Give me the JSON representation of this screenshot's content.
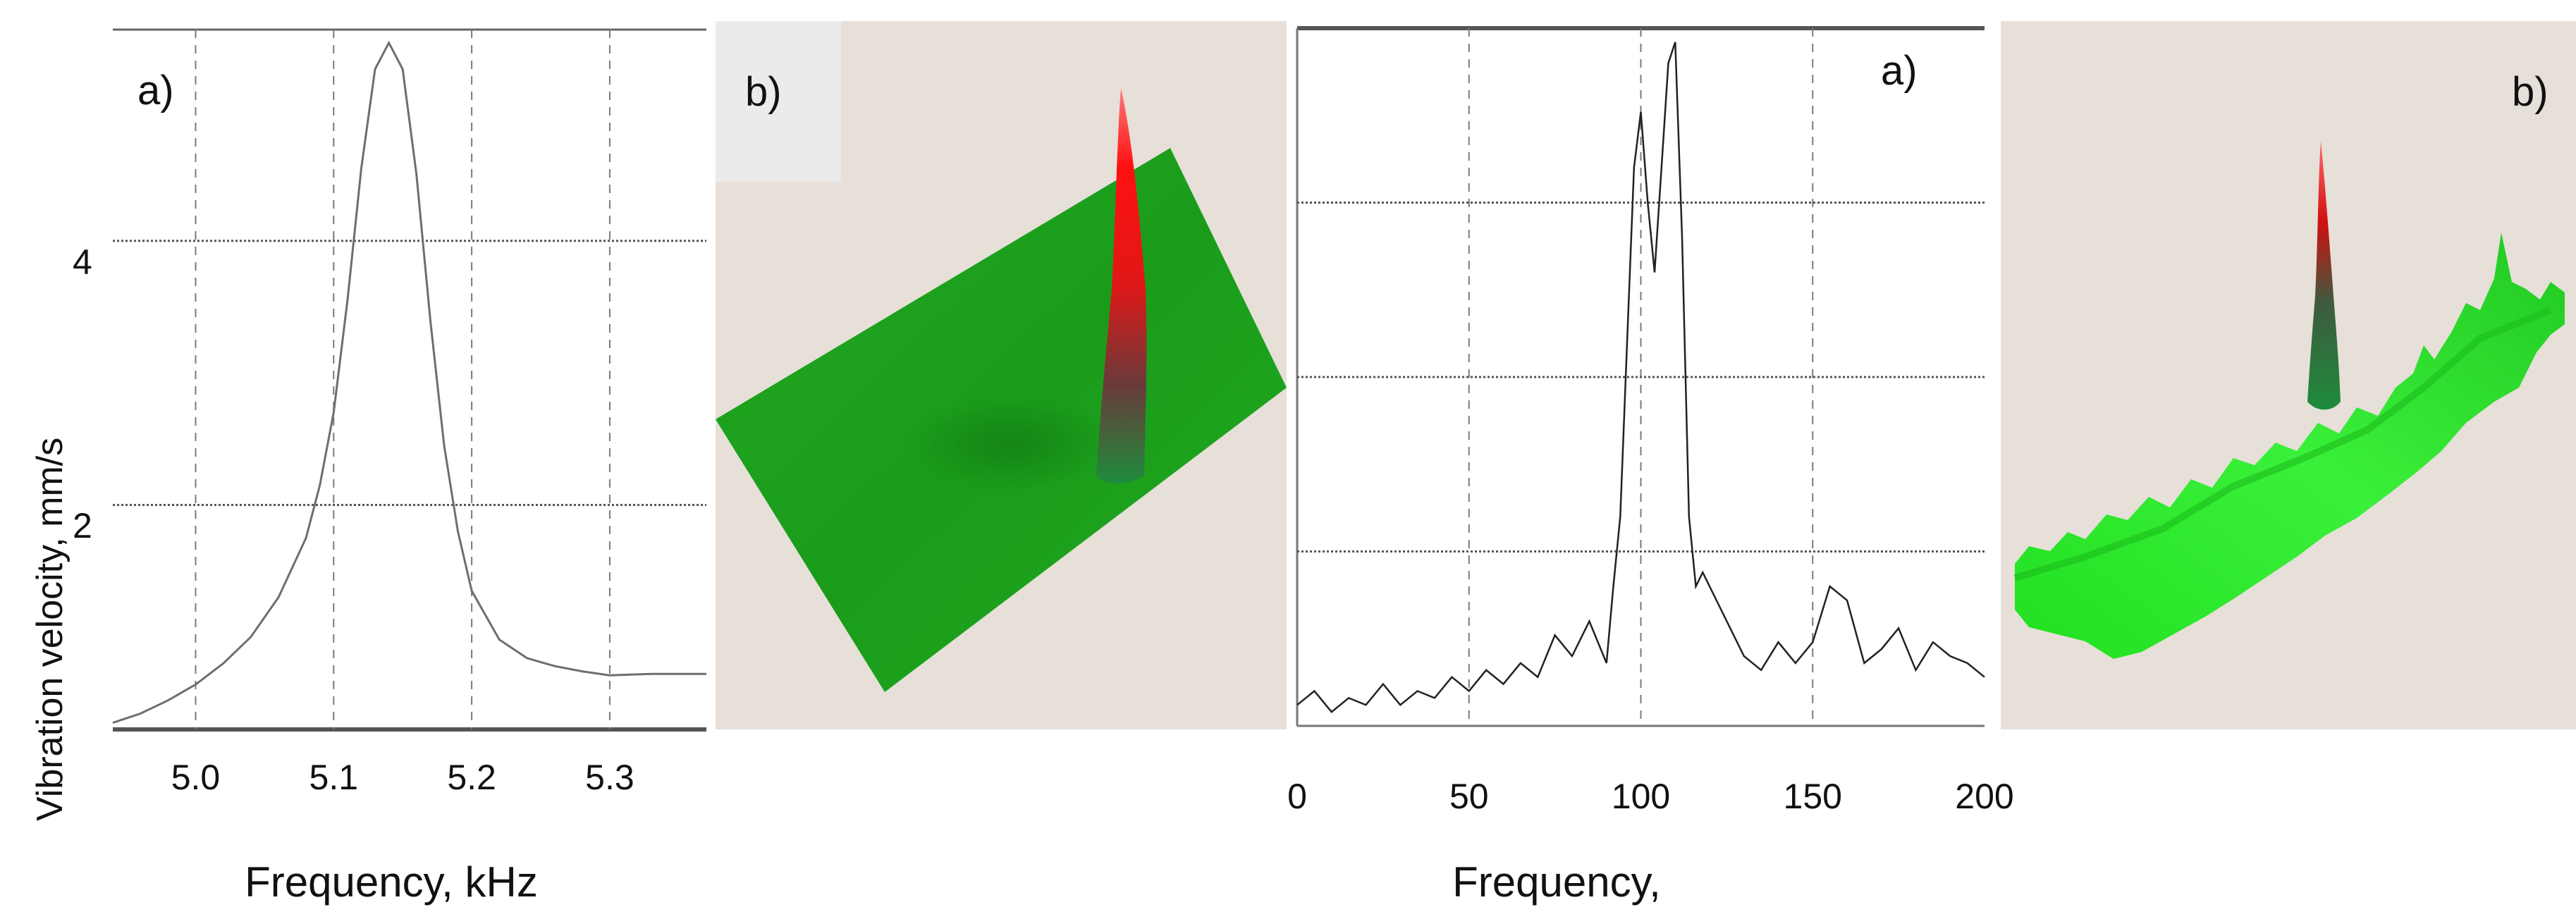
{
  "chart_data": [
    {
      "type": "line",
      "panel_label": "a)",
      "xlabel": "Frequency, kHz",
      "ylabel": "Vibration velocity, mm/s",
      "xlim": [
        4.94,
        5.37
      ],
      "ylim": [
        0.3,
        5.6
      ],
      "x_ticks": [
        5.0,
        5.1,
        5.2,
        5.3
      ],
      "x_tick_labels": [
        "5.0",
        "5.1",
        "5.2",
        "5.3"
      ],
      "y_ticks": [
        2,
        4
      ],
      "y_tick_labels": [
        "2",
        "4"
      ],
      "grid": true,
      "series": [
        {
          "x": [
            4.94,
            4.96,
            4.98,
            5.0,
            5.02,
            5.04,
            5.06,
            5.08,
            5.09,
            5.1,
            5.11,
            5.12,
            5.13,
            5.14,
            5.15,
            5.16,
            5.17,
            5.18,
            5.19,
            5.2,
            5.22,
            5.24,
            5.26,
            5.28,
            5.3,
            5.33,
            5.37
          ],
          "y": [
            0.35,
            0.42,
            0.52,
            0.64,
            0.8,
            1.0,
            1.3,
            1.75,
            2.15,
            2.7,
            3.55,
            4.55,
            5.3,
            5.5,
            5.3,
            4.5,
            3.4,
            2.45,
            1.8,
            1.35,
            0.98,
            0.84,
            0.78,
            0.74,
            0.71,
            0.72,
            0.72
          ]
        }
      ]
    },
    {
      "type": "surface",
      "panel_label": "b)",
      "colors": {
        "surface": "#1ea01e",
        "peak": "#ff1a1a",
        "peak_base": "#1e8c3c"
      }
    },
    {
      "type": "line",
      "panel_label": "a)",
      "xlabel": "Frequency,",
      "xlim": [
        0,
        200
      ],
      "ylim": [
        0,
        100
      ],
      "x_ticks": [
        0,
        50,
        100,
        150,
        200
      ],
      "x_tick_labels": [
        "0",
        "50",
        "100",
        "150",
        "200"
      ],
      "grid": true,
      "series": [
        {
          "x": [
            0,
            5,
            10,
            15,
            20,
            25,
            30,
            35,
            40,
            45,
            50,
            55,
            60,
            65,
            70,
            75,
            80,
            85,
            90,
            92,
            94,
            96,
            98,
            100,
            102,
            104,
            106,
            108,
            110,
            112,
            114,
            116,
            118,
            120,
            125,
            130,
            135,
            140,
            145,
            150,
            155,
            160,
            165,
            170,
            175,
            180,
            185,
            190,
            195,
            200
          ],
          "y": [
            3,
            5,
            2,
            4,
            3,
            6,
            3,
            5,
            4,
            7,
            5,
            8,
            6,
            9,
            7,
            13,
            10,
            15,
            9,
            20,
            30,
            55,
            80,
            88,
            75,
            65,
            80,
            95,
            98,
            70,
            30,
            20,
            22,
            20,
            15,
            10,
            8,
            12,
            9,
            12,
            20,
            18,
            9,
            11,
            14,
            8,
            12,
            10,
            9,
            7
          ]
        }
      ]
    },
    {
      "type": "surface",
      "panel_label": "b)",
      "colors": {
        "surface": "#33e633",
        "peak": "#ff1a1a",
        "peak_base": "#1e8c3c"
      }
    }
  ]
}
